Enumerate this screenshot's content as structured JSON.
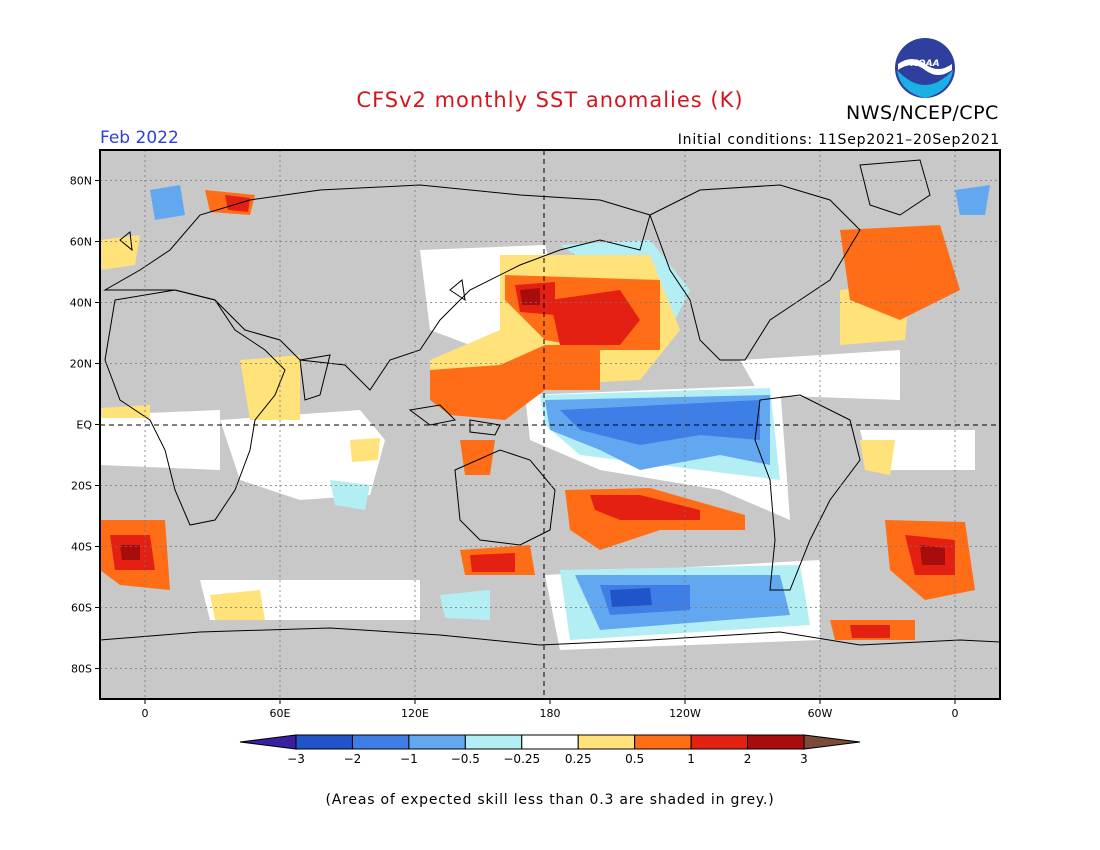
{
  "header": {
    "title": "CFSv2 monthly SST anomalies (K)",
    "agency": "NWS/NCEP/CPC",
    "month": "Feb 2022",
    "initial_conditions": "Initial conditions: 11Sep2021–20Sep2021"
  },
  "logo": {
    "text": "NOAA",
    "icon": "noaa-logo-icon"
  },
  "map": {
    "lat_ticks": [
      "80N",
      "60N",
      "40N",
      "20N",
      "EQ",
      "20S",
      "40S",
      "60S",
      "80S"
    ],
    "lon_ticks": [
      "0",
      "60E",
      "120E",
      "180",
      "120W",
      "60W",
      "0"
    ],
    "lat_range": [
      -90,
      90
    ],
    "lon_range": [
      -20,
      380
    ],
    "gridlines": "dotted",
    "skill_mask_color": "#c8c8c8",
    "ocean_neutral_color": "#ffffff"
  },
  "colorbar": {
    "labels": [
      "−3",
      "−2",
      "−1",
      "−0.5",
      "−0.25",
      "0.25",
      "0.5",
      "1",
      "2",
      "3"
    ],
    "colors": [
      "#3a1fa0",
      "#1f55c8",
      "#3d7fe6",
      "#62a8f0",
      "#b4eef5",
      "#ffffff",
      "#ffe27a",
      "#ff6e16",
      "#e32012",
      "#a80d0d",
      "#7a4a3a"
    ]
  },
  "footer": {
    "skill_note": "(Areas of expected skill less than 0.3 are shaded in grey.)"
  }
}
